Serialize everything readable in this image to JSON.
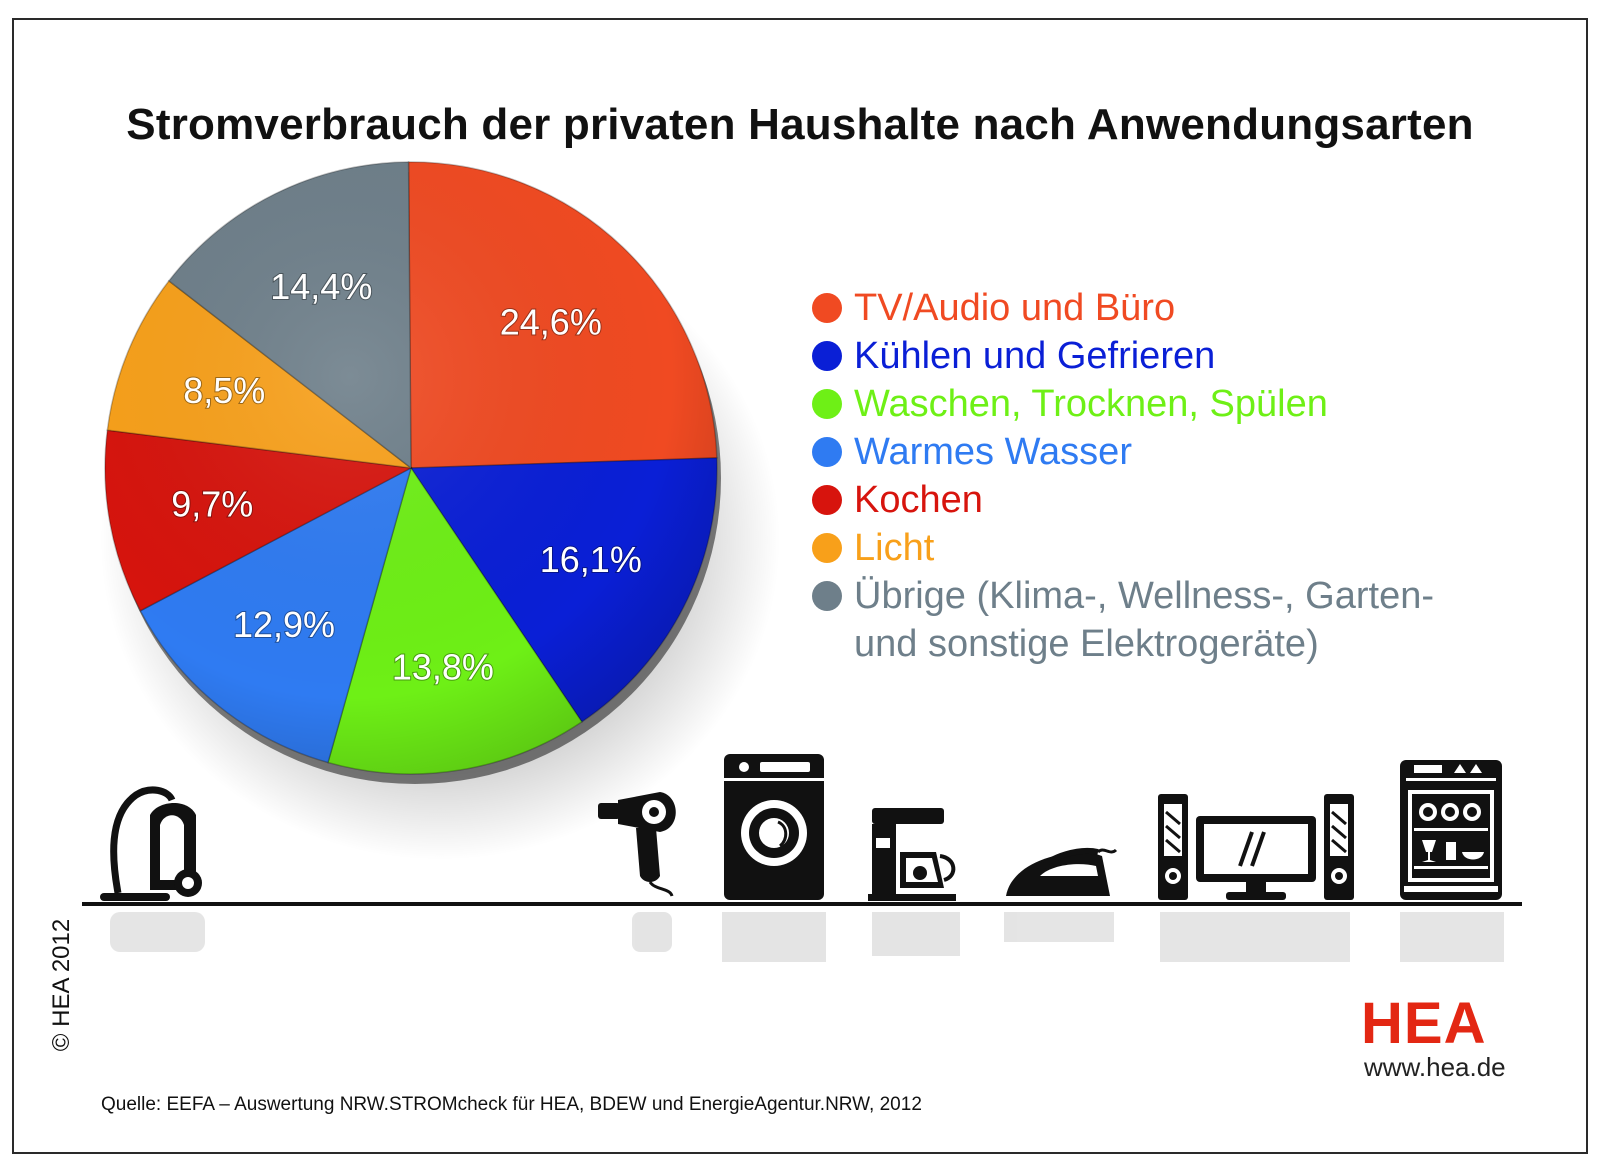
{
  "title": "Stromverbrauch der privaten Haushalte nach Anwendungsarten",
  "chart_data": {
    "type": "pie",
    "title": "Stromverbrauch der privaten Haushalte nach Anwendungsarten",
    "unit": "%",
    "slices": [
      {
        "key": "tv",
        "label": "TV/Audio und Büro",
        "value": 24.6,
        "value_label": "24,6%",
        "color": "#f04a22"
      },
      {
        "key": "kuehlen",
        "label": "Kühlen und Gefrieren",
        "value": 16.1,
        "value_label": "16,1%",
        "color": "#0a1fd6"
      },
      {
        "key": "waschen",
        "label": "Waschen, Trocknen, Spülen",
        "value": 13.8,
        "value_label": "13,8%",
        "color": "#6ef016"
      },
      {
        "key": "wasser",
        "label": "Warmes Wasser",
        "value": 12.9,
        "value_label": "12,9%",
        "color": "#2f7bf2"
      },
      {
        "key": "kochen",
        "label": "Kochen",
        "value": 9.7,
        "value_label": "9,7%",
        "color": "#d7140d"
      },
      {
        "key": "licht",
        "label": "Licht",
        "value": 8.5,
        "value_label": "8,5%",
        "color": "#f8a01a"
      },
      {
        "key": "uebrige",
        "label": "Übrige (Klima-, Wellness-, Garten-\nund sonstige Elektrogeräte)",
        "value": 14.4,
        "value_label": "14,4%",
        "color": "#6e7f8a"
      }
    ],
    "legend_position": "right"
  },
  "icons": [
    "vacuum-cleaner-icon",
    "hair-dryer-icon",
    "washing-machine-icon",
    "coffee-machine-icon",
    "iron-icon",
    "tv-stereo-icon",
    "dishwasher-icon"
  ],
  "copyright": "© HEA 2012",
  "brand": "HEA",
  "website": "www.hea.de",
  "source": "Quelle: EEFA – Auswertung NRW.STROMcheck für HEA, BDEW und EnergieAgentur.NRW, 2012"
}
